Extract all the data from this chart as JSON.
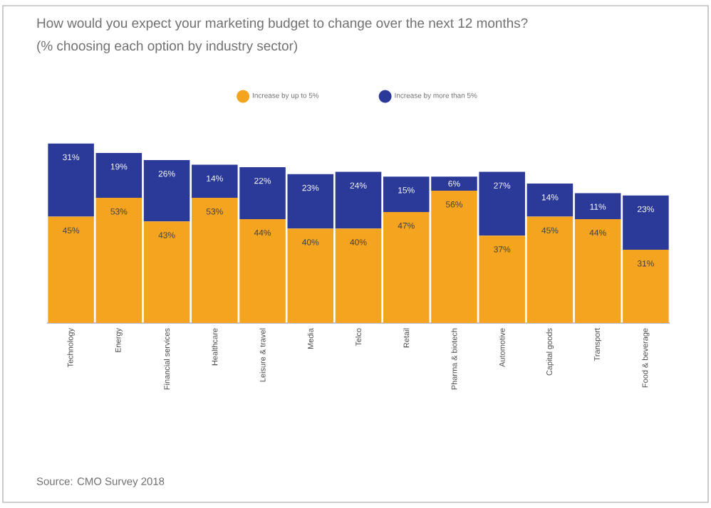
{
  "chart_data": {
    "type": "bar",
    "stacked": true,
    "title": "How would you expect your marketing budget to change over the next 12 months?",
    "subtitle": "(% choosing each option by industry sector)",
    "categories": [
      "Technology",
      "Energy",
      "Financial services",
      "Healthcare",
      "Leisure & travel",
      "Media",
      "Telco",
      "Retail",
      "Pharma & biotech",
      "Automotive",
      "Capital goods",
      "Transport",
      "Food & beverage"
    ],
    "series": [
      {
        "name": "Increase by up to 5%",
        "color": "#f4a41e",
        "values": [
          45,
          53,
          43,
          53,
          44,
          40,
          40,
          47,
          56,
          37,
          45,
          44,
          31
        ],
        "value_labels": [
          "45%",
          "53%",
          "43%",
          "53%",
          "44%",
          "40%",
          "40%",
          "47%",
          "56%",
          "37%",
          "45%",
          "44%",
          "31%"
        ]
      },
      {
        "name": "Increase by more than 5%",
        "color": "#2b3a98",
        "values": [
          31,
          19,
          26,
          14,
          22,
          23,
          24,
          15,
          6,
          27,
          14,
          11,
          23
        ],
        "value_labels": [
          "31%",
          "19%",
          "26%",
          "14%",
          "22%",
          "23%",
          "24%",
          "15%",
          "6%",
          "27%",
          "14%",
          "11%",
          "23%"
        ]
      }
    ],
    "legend": "top",
    "annotations": [
      "Source: CMO Survey 2018"
    ]
  }
}
